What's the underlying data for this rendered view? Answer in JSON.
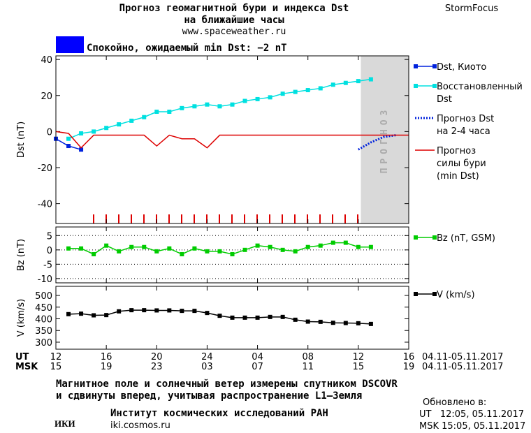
{
  "header": {
    "title_lines": [
      "Прогноз геомагнитной бури и индекса Dst",
      "на ближайшие часы"
    ],
    "url": "www.spaceweather.ru",
    "brand": "StormFocus"
  },
  "status": {
    "text": "Спокойно, ожидаемый min Dst: −2 nT",
    "color": "#0000ff"
  },
  "chart_data": [
    {
      "type": "line",
      "y_label": "Dst (nT)",
      "xlim": [
        0,
        28
      ],
      "ylim": [
        -51,
        42
      ],
      "yticks": [
        40,
        20,
        0,
        -20,
        -40
      ],
      "forecast_start": 24.2,
      "forecast_label": "ПРОГНОЗ",
      "series": [
        {
          "name": [
            "Dst, Киото"
          ],
          "color": "#0022dd",
          "marker": true,
          "style": "solid",
          "x": [
            0,
            1,
            2
          ],
          "values": [
            -4,
            -8,
            -10
          ]
        },
        {
          "name": [
            "Восстановленный",
            "Dst"
          ],
          "color": "#00e0e0",
          "marker": true,
          "style": "solid",
          "x": [
            1,
            2,
            3,
            4,
            5,
            6,
            7,
            8,
            9,
            10,
            11,
            12,
            13,
            14,
            15,
            16,
            17,
            18,
            19,
            20,
            21,
            22,
            23,
            24,
            25
          ],
          "values": [
            -4,
            -1,
            0,
            2,
            4,
            6,
            8,
            11,
            11,
            13,
            14,
            15,
            14,
            15,
            17,
            18,
            19,
            21,
            22,
            23,
            24,
            26,
            27,
            28,
            29
          ]
        },
        {
          "name": [
            "Прогноз Dst",
            "на 2-4 часа"
          ],
          "color": "#0022dd",
          "marker": false,
          "style": "dotted",
          "x": [
            24,
            25,
            26,
            27
          ],
          "values": [
            -10,
            -6,
            -3,
            -2
          ]
        },
        {
          "name": [
            "Прогноз",
            "силы бури",
            "(min Dst)"
          ],
          "color": "#dd0000",
          "marker": false,
          "style": "solid",
          "x": [
            0,
            1,
            2,
            3,
            4,
            5,
            6,
            7,
            8,
            9,
            10,
            11,
            12,
            13,
            14,
            15,
            16,
            17,
            18,
            19,
            20,
            21,
            22,
            23,
            24,
            25,
            26,
            27,
            28
          ],
          "values": [
            0,
            -1,
            -9,
            -2,
            -2,
            -2,
            -2,
            -2,
            -8,
            -2,
            -4,
            -4,
            -9,
            -2,
            -2,
            -2,
            -2,
            -2,
            -2,
            -2,
            -2,
            -2,
            -2,
            -2,
            -2,
            -2,
            -2,
            -2,
            -2
          ]
        }
      ]
    },
    {
      "type": "line",
      "y_label": "Bz (nT)",
      "xlim": [
        0,
        28
      ],
      "ylim": [
        -11.5,
        8
      ],
      "yticks": [
        5,
        0,
        -5,
        -10
      ],
      "grid": true,
      "series": [
        {
          "name": [
            "Bz (nT, GSM)"
          ],
          "color": "#00cc00",
          "marker": true,
          "style": "solid",
          "x": [
            1,
            2,
            3,
            4,
            5,
            6,
            7,
            8,
            9,
            10,
            11,
            12,
            13,
            14,
            15,
            16,
            17,
            18,
            19,
            20,
            21,
            22,
            23,
            24,
            25
          ],
          "values": [
            0.5,
            0.5,
            -1.5,
            1.5,
            -0.5,
            1,
            1,
            -0.5,
            0.5,
            -1.5,
            0.5,
            -0.5,
            -0.5,
            -1.5,
            0,
            1.5,
            1,
            0,
            -0.5,
            1,
            1.5,
            2.5,
            2.5,
            1,
            1
          ]
        }
      ]
    },
    {
      "type": "line",
      "y_label": "V (km/s)",
      "xlim": [
        0,
        28
      ],
      "ylim": [
        270,
        539
      ],
      "yticks": [
        500,
        450,
        400,
        350,
        300
      ],
      "xticks": [
        {
          "value": 0,
          "label": "12"
        },
        {
          "value": 4,
          "label": "16"
        },
        {
          "value": 8,
          "label": "20"
        },
        {
          "value": 12,
          "label": "24"
        },
        {
          "value": 16,
          "label": "04"
        },
        {
          "value": 20,
          "label": "08"
        },
        {
          "value": 24,
          "label": "12"
        },
        {
          "value": 28,
          "label": "16"
        }
      ],
      "xticks_msk": [
        "15",
        "19",
        "23",
        "03",
        "07",
        "11",
        "15",
        "19"
      ],
      "x_row_names": [
        "UT",
        "MSK"
      ],
      "date_range": "04.11-05.11.2017",
      "series": [
        {
          "name": [
            "V (km/s)"
          ],
          "color": "#000000",
          "marker": true,
          "style": "solid",
          "x": [
            1,
            2,
            3,
            4,
            5,
            6,
            7,
            8,
            9,
            10,
            11,
            12,
            13,
            14,
            15,
            16,
            17,
            18,
            19,
            20,
            21,
            22,
            23,
            24,
            25
          ],
          "values": [
            420,
            422,
            415,
            416,
            432,
            437,
            437,
            436,
            436,
            434,
            434,
            425,
            413,
            405,
            405,
            405,
            408,
            408,
            396,
            388,
            387,
            383,
            382,
            381,
            378
          ]
        }
      ]
    }
  ],
  "footer": {
    "notes": [
      "Магнитное поле и солнечный ветер измерены спутником DSCOVR",
      "и сдвинуты вперед, учитывая распространение L1–Земля"
    ],
    "logo": "ИКИ",
    "institute": "Институт космических исследований РАН",
    "site": "iki.cosmos.ru",
    "updated_label": "Обновлено в:",
    "updated_ut": "UT   12:05, 05.11.2017",
    "updated_msk": "MSK 15:05, 05.11.2017"
  }
}
